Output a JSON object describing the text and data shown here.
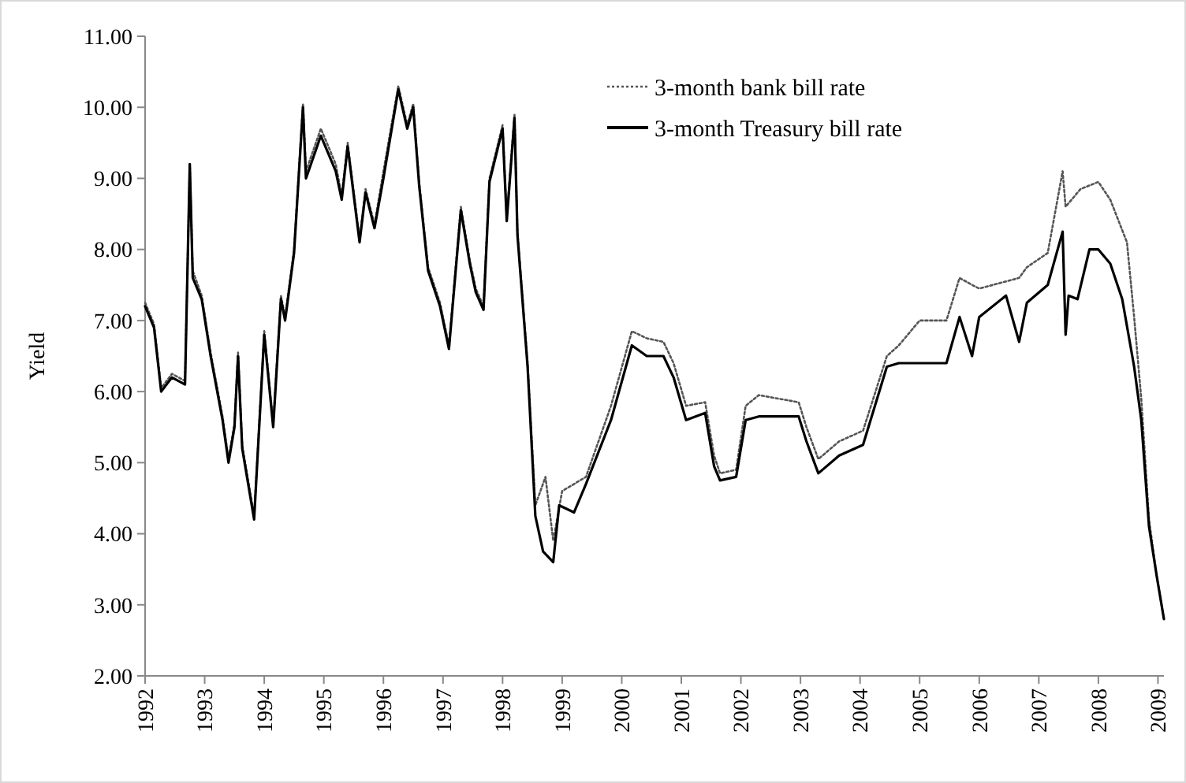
{
  "chart_data": {
    "type": "line",
    "ylabel": "Yield",
    "legend": "top",
    "grid": false,
    "marker": "none",
    "xlim": [
      1992,
      2009.1
    ],
    "xticks": [
      {
        "value": 1992,
        "label": "1992"
      },
      {
        "value": 1993,
        "label": "1993"
      },
      {
        "value": 1994,
        "label": "1994"
      },
      {
        "value": 1995,
        "label": "1995"
      },
      {
        "value": 1996,
        "label": "1996"
      },
      {
        "value": 1997,
        "label": "1997"
      },
      {
        "value": 1998,
        "label": "1998"
      },
      {
        "value": 1999,
        "label": "1999"
      },
      {
        "value": 2000,
        "label": "2000"
      },
      {
        "value": 2001,
        "label": "2001"
      },
      {
        "value": 2002,
        "label": "2002"
      },
      {
        "value": 2003,
        "label": "2003"
      },
      {
        "value": 2004,
        "label": "2004"
      },
      {
        "value": 2005,
        "label": "2005"
      },
      {
        "value": 2006,
        "label": "2006"
      },
      {
        "value": 2007,
        "label": "2007"
      },
      {
        "value": 2008,
        "label": "2008"
      },
      {
        "value": 2009,
        "label": "2009"
      }
    ],
    "ylim": [
      2,
      11
    ],
    "yticks": [
      {
        "value": 2,
        "label": "2.00"
      },
      {
        "value": 3,
        "label": "3.00"
      },
      {
        "value": 4,
        "label": "4.00"
      },
      {
        "value": 5,
        "label": "5.00"
      },
      {
        "value": 6,
        "label": "6.00"
      },
      {
        "value": 7,
        "label": "7.00"
      },
      {
        "value": 8,
        "label": "8.00"
      },
      {
        "value": 9,
        "label": "9.00"
      },
      {
        "value": 10,
        "label": "10.00"
      },
      {
        "value": 11,
        "label": "11.00"
      }
    ],
    "series": [
      {
        "name": "3-month bank bill rate",
        "color": "#555555",
        "line_style": "dotted",
        "x": [
          1992.0,
          1992.15,
          1992.27,
          1992.45,
          1992.67,
          1992.75,
          1992.8,
          1992.95,
          1993.1,
          1993.3,
          1993.4,
          1993.5,
          1993.56,
          1993.63,
          1993.83,
          1994.0,
          1994.15,
          1994.28,
          1994.35,
          1994.5,
          1994.65,
          1994.7,
          1994.95,
          1995.2,
          1995.3,
          1995.4,
          1995.6,
          1995.7,
          1995.85,
          1996.0,
          1996.25,
          1996.4,
          1996.5,
          1996.6,
          1996.75,
          1996.95,
          1997.1,
          1997.3,
          1997.45,
          1997.55,
          1997.68,
          1997.78,
          1998.0,
          1998.07,
          1998.2,
          1998.25,
          1998.42,
          1998.55,
          1998.72,
          1998.85,
          1999.0,
          1999.4,
          1999.82,
          2000.17,
          2000.42,
          2000.7,
          2000.87,
          2001.08,
          2001.4,
          2001.55,
          2001.65,
          2001.92,
          2002.08,
          2002.3,
          2002.97,
          2003.1,
          2003.3,
          2003.65,
          2004.05,
          2004.45,
          2004.65,
          2005.0,
          2005.45,
          2005.67,
          2005.88,
          2006.0,
          2006.45,
          2006.67,
          2006.8,
          2007.15,
          2007.4,
          2007.45,
          2007.7,
          2008.0,
          2008.2,
          2008.48,
          2008.6,
          2008.72,
          2008.85,
          2008.98,
          2009.1
        ],
        "values": [
          7.25,
          6.95,
          6.05,
          6.25,
          6.15,
          9.2,
          7.7,
          7.35,
          6.55,
          5.65,
          5.05,
          5.55,
          6.55,
          5.25,
          4.25,
          6.85,
          5.55,
          7.35,
          7.05,
          8.0,
          10.05,
          9.1,
          9.7,
          9.2,
          8.75,
          9.5,
          8.15,
          8.85,
          8.35,
          9.1,
          10.3,
          9.75,
          10.05,
          8.95,
          7.75,
          7.25,
          6.65,
          8.6,
          7.85,
          7.45,
          7.2,
          9.0,
          9.75,
          8.45,
          9.9,
          8.25,
          6.4,
          4.4,
          4.8,
          3.9,
          4.6,
          4.8,
          5.8,
          6.85,
          6.75,
          6.7,
          6.4,
          5.8,
          5.85,
          5.1,
          4.85,
          4.9,
          5.8,
          5.95,
          5.85,
          5.5,
          5.05,
          5.3,
          5.45,
          6.5,
          6.65,
          7.0,
          7.0,
          7.6,
          7.5,
          7.45,
          7.55,
          7.6,
          7.75,
          7.95,
          9.1,
          8.6,
          8.85,
          8.95,
          8.7,
          8.1,
          7.05,
          5.9,
          4.2,
          3.4,
          2.8
        ]
      },
      {
        "name": "3-month Treasury bill rate",
        "color": "#000000",
        "line_style": "solid",
        "x": [
          1992.0,
          1992.15,
          1992.27,
          1992.45,
          1992.67,
          1992.75,
          1992.8,
          1992.95,
          1993.1,
          1993.3,
          1993.4,
          1993.5,
          1993.56,
          1993.63,
          1993.83,
          1994.0,
          1994.15,
          1994.28,
          1994.35,
          1994.5,
          1994.65,
          1994.7,
          1994.95,
          1995.2,
          1995.3,
          1995.4,
          1995.6,
          1995.7,
          1995.85,
          1996.0,
          1996.25,
          1996.4,
          1996.5,
          1996.6,
          1996.75,
          1996.95,
          1997.1,
          1997.3,
          1997.45,
          1997.55,
          1997.68,
          1997.78,
          1998.0,
          1998.07,
          1998.2,
          1998.25,
          1998.42,
          1998.55,
          1998.68,
          1998.85,
          1998.95,
          1999.2,
          1999.4,
          1999.82,
          2000.17,
          2000.42,
          2000.7,
          2000.87,
          2001.08,
          2001.4,
          2001.55,
          2001.65,
          2001.92,
          2002.08,
          2002.3,
          2002.97,
          2003.1,
          2003.3,
          2003.65,
          2004.05,
          2004.45,
          2004.65,
          2005.0,
          2005.45,
          2005.67,
          2005.88,
          2006.0,
          2006.45,
          2006.67,
          2006.8,
          2007.15,
          2007.4,
          2007.45,
          2007.5,
          2007.65,
          2007.85,
          2008.0,
          2008.2,
          2008.4,
          2008.6,
          2008.72,
          2008.85,
          2008.98,
          2009.1
        ],
        "values": [
          7.2,
          6.9,
          6.0,
          6.2,
          6.1,
          9.2,
          7.6,
          7.3,
          6.5,
          5.6,
          5.0,
          5.5,
          6.5,
          5.2,
          4.2,
          6.8,
          5.5,
          7.3,
          7.0,
          7.95,
          10.0,
          9.0,
          9.6,
          9.1,
          8.7,
          9.45,
          8.1,
          8.8,
          8.3,
          9.0,
          10.25,
          9.7,
          10.0,
          8.9,
          7.7,
          7.2,
          6.6,
          8.55,
          7.8,
          7.4,
          7.15,
          8.95,
          9.7,
          8.4,
          9.85,
          8.2,
          6.35,
          4.25,
          3.75,
          3.6,
          4.4,
          4.3,
          4.7,
          5.6,
          6.65,
          6.5,
          6.5,
          6.2,
          5.6,
          5.7,
          4.95,
          4.75,
          4.8,
          5.6,
          5.65,
          5.65,
          5.3,
          4.85,
          5.1,
          5.25,
          6.35,
          6.4,
          6.4,
          6.4,
          7.05,
          6.5,
          7.05,
          7.35,
          6.7,
          7.25,
          7.5,
          8.25,
          6.8,
          7.35,
          7.3,
          8.0,
          8.0,
          7.8,
          7.3,
          6.35,
          5.6,
          4.1,
          3.4,
          2.8
        ]
      }
    ]
  }
}
